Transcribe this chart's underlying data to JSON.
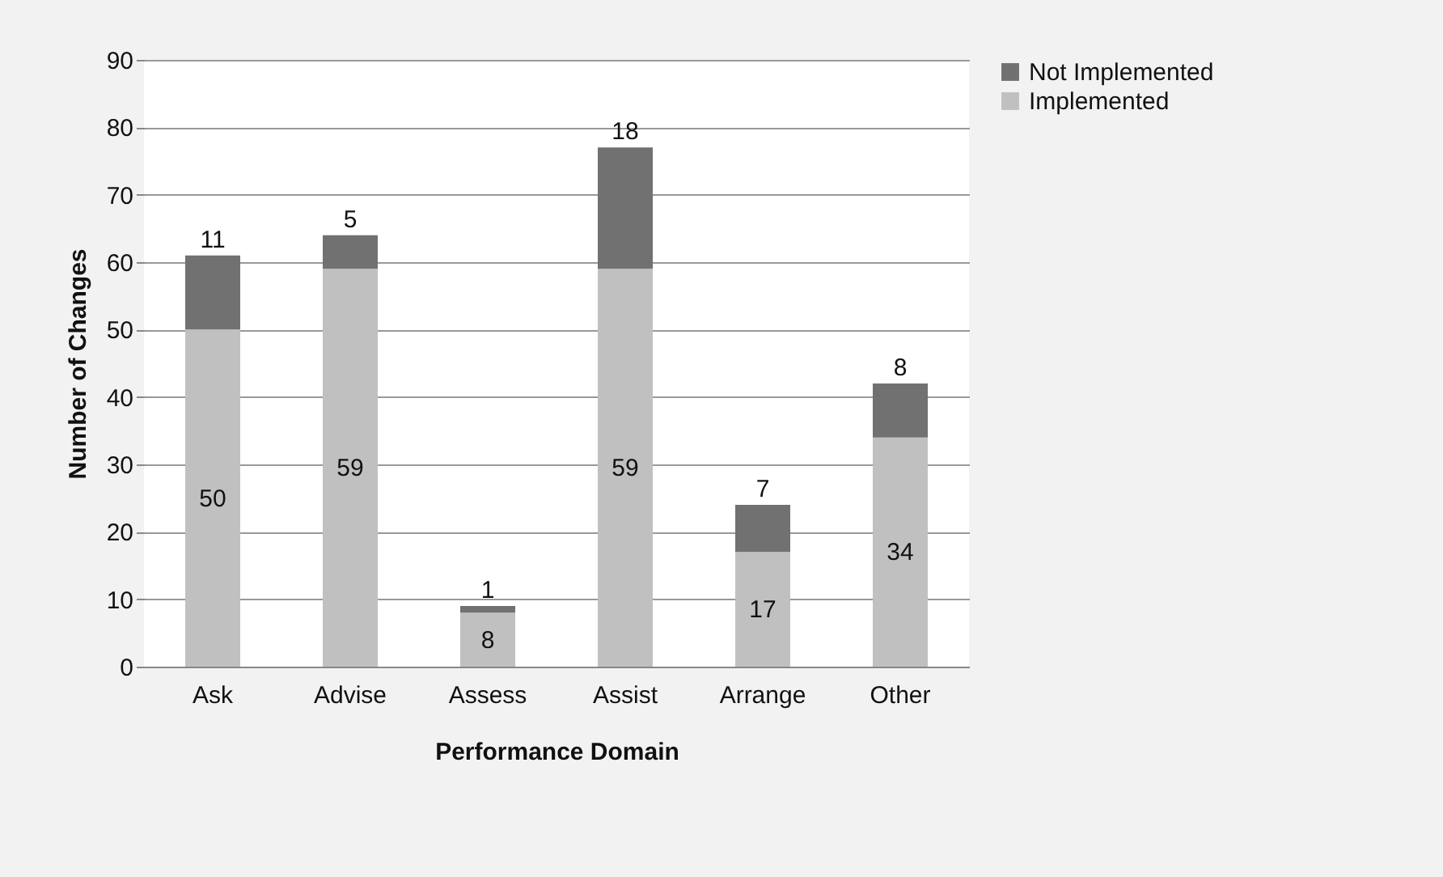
{
  "chart_data": {
    "type": "bar",
    "stacked": true,
    "xlabel": "Performance Domain",
    "ylabel": "Number of Changes",
    "categories": [
      "Ask",
      "Advise",
      "Assess",
      "Assist",
      "Arrange",
      "Other"
    ],
    "series": [
      {
        "name": "Implemented",
        "color": "#c0c0c0",
        "values": [
          50,
          59,
          8,
          59,
          17,
          34
        ]
      },
      {
        "name": "Not Implemented",
        "color": "#717171",
        "values": [
          11,
          5,
          1,
          18,
          7,
          8
        ]
      }
    ],
    "ylim": [
      0,
      90
    ],
    "yticks": [
      0,
      10,
      20,
      30,
      40,
      50,
      60,
      70,
      80,
      90
    ],
    "grid": "y",
    "legend": "right",
    "data_labels": true
  }
}
